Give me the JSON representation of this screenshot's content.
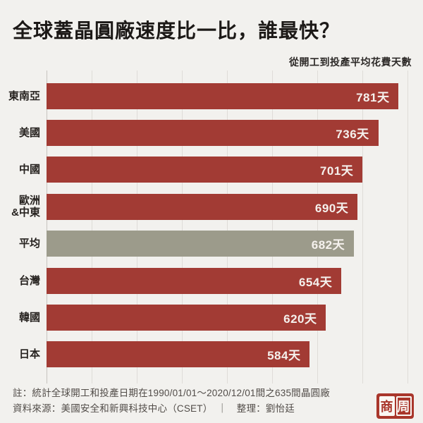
{
  "header": {
    "title": "全球蓋晶圓廠速度比一比，誰最快？",
    "subtitle": "從開工到投產平均花費天數"
  },
  "chart_data": {
    "type": "bar",
    "orientation": "horizontal",
    "title": "全球蓋晶圓廠速度比一比，誰最快？",
    "subtitle": "從開工到投產平均花費天數",
    "categories": [
      "東南亞",
      "美國",
      "中國",
      "歐洲\n&中東",
      "平均",
      "台灣",
      "韓國",
      "日本"
    ],
    "values": [
      781,
      736,
      701,
      690,
      682,
      654,
      620,
      584
    ],
    "unit": "天",
    "value_labels": [
      "781天",
      "736天",
      "701天",
      "690天",
      "682天",
      "654天",
      "620天",
      "584天"
    ],
    "highlight_category": "平均",
    "xlim": [
      0,
      810
    ],
    "gridline_step": 100,
    "grid": true,
    "legend": "none",
    "bar_color": "#a23b34",
    "highlight_color": "#9c9b8b",
    "value_label_color": "#f5f1ed"
  },
  "footer": {
    "note": "註：統計全球開工和投產日期在1990/01/01～2020/12/01間之635間晶圓廠",
    "source": "資料來源：美國安全和新興科技中心（CSET）　｜　整理：劉怡廷",
    "logo": {
      "char1": "商",
      "char2": "周"
    }
  }
}
